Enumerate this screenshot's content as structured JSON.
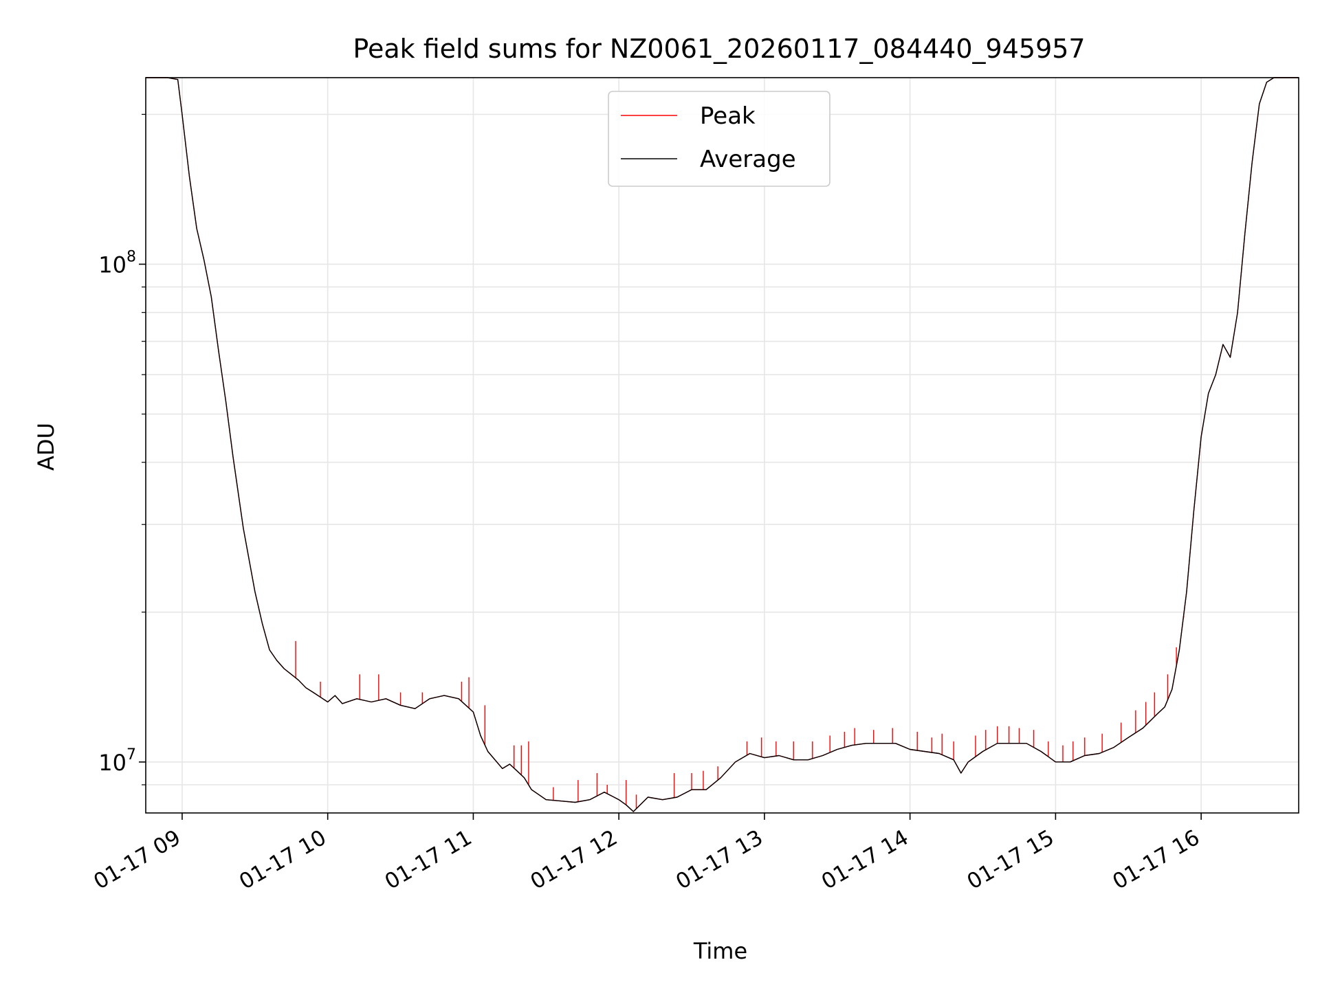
{
  "chart_data": {
    "type": "line",
    "title": "Peak field sums for NZ0061_20260117_084440_945957",
    "xlabel": "Time",
    "ylabel": "ADU",
    "yscale": "log",
    "xlim": [
      8.75,
      16.67
    ],
    "ylim": [
      7900000,
      237000000
    ],
    "grid": true,
    "legend_position": "upper center",
    "x_ticks": [
      {
        "value": 9,
        "label": "01-17 09"
      },
      {
        "value": 10,
        "label": "01-17 10"
      },
      {
        "value": 11,
        "label": "01-17 11"
      },
      {
        "value": 12,
        "label": "01-17 12"
      },
      {
        "value": 13,
        "label": "01-17 13"
      },
      {
        "value": 14,
        "label": "01-17 14"
      },
      {
        "value": 15,
        "label": "01-17 15"
      },
      {
        "value": 16,
        "label": "01-17 16"
      }
    ],
    "y_major_ticks": [
      {
        "value": 10000000,
        "base": "10",
        "exp": "7"
      },
      {
        "value": 100000000,
        "base": "10",
        "exp": "8"
      }
    ],
    "y_minor_ticks": [
      9000000,
      20000000,
      30000000,
      40000000,
      50000000,
      60000000,
      70000000,
      80000000,
      90000000,
      200000000
    ],
    "series": [
      {
        "name": "Average",
        "color": "#000000",
        "x": [
          8.75,
          8.9,
          8.97,
          9.0,
          9.05,
          9.1,
          9.15,
          9.2,
          9.25,
          9.3,
          9.35,
          9.42,
          9.5,
          9.55,
          9.6,
          9.65,
          9.7,
          9.75,
          9.8,
          9.85,
          9.9,
          10.0,
          10.05,
          10.1,
          10.2,
          10.3,
          10.4,
          10.5,
          10.6,
          10.7,
          10.8,
          10.9,
          11.0,
          11.05,
          11.1,
          11.2,
          11.25,
          11.3,
          11.35,
          11.4,
          11.5,
          11.6,
          11.7,
          11.8,
          11.9,
          12.0,
          12.05,
          12.1,
          12.2,
          12.3,
          12.4,
          12.5,
          12.6,
          12.7,
          12.8,
          12.9,
          13.0,
          13.1,
          13.2,
          13.3,
          13.4,
          13.5,
          13.6,
          13.7,
          13.8,
          13.9,
          14.0,
          14.1,
          14.2,
          14.3,
          14.35,
          14.4,
          14.5,
          14.6,
          14.7,
          14.8,
          14.9,
          15.0,
          15.1,
          15.2,
          15.3,
          15.4,
          15.5,
          15.6,
          15.7,
          15.75,
          15.8,
          15.85,
          15.9,
          15.95,
          16.0,
          16.05,
          16.1,
          16.15,
          16.2,
          16.25,
          16.3,
          16.35,
          16.4,
          16.45,
          16.5,
          16.67
        ],
        "y": [
          237000000,
          237000000,
          235000000,
          200000000,
          150000000,
          118000000,
          102000000,
          86000000,
          67000000,
          53000000,
          41000000,
          29500000,
          22000000,
          19000000,
          16800000,
          16000000,
          15400000,
          15000000,
          14600000,
          14100000,
          13800000,
          13200000,
          13600000,
          13100000,
          13400000,
          13200000,
          13400000,
          13000000,
          12800000,
          13400000,
          13600000,
          13400000,
          12600000,
          11300000,
          10500000,
          9700000,
          9900000,
          9600000,
          9300000,
          8800000,
          8400000,
          8350000,
          8300000,
          8400000,
          8700000,
          8400000,
          8200000,
          7950000,
          8500000,
          8400000,
          8500000,
          8800000,
          8800000,
          9300000,
          10000000,
          10400000,
          10200000,
          10300000,
          10100000,
          10100000,
          10300000,
          10600000,
          10800000,
          10900000,
          10900000,
          10900000,
          10600000,
          10500000,
          10400000,
          10100000,
          9500000,
          10000000,
          10500000,
          10900000,
          10900000,
          10900000,
          10500000,
          10000000,
          10000000,
          10300000,
          10400000,
          10700000,
          11200000,
          11700000,
          12500000,
          12900000,
          14000000,
          16800000,
          22000000,
          32000000,
          45000000,
          55000000,
          60000000,
          69000000,
          65000000,
          80000000,
          115000000,
          160000000,
          210000000,
          232000000,
          237000000,
          237000000
        ]
      },
      {
        "name": "Peak",
        "color": "#ff0000",
        "x": [
          8.75,
          8.9,
          8.97,
          9.0,
          9.05,
          9.1,
          9.15,
          9.2,
          9.25,
          9.3,
          9.35,
          9.42,
          9.5,
          9.55,
          9.6,
          9.65,
          9.7,
          9.75,
          9.8,
          9.85,
          9.9,
          10.0,
          10.05,
          10.1,
          10.2,
          10.3,
          10.4,
          10.5,
          10.6,
          10.7,
          10.8,
          10.9,
          11.0,
          11.05,
          11.1,
          11.2,
          11.25,
          11.3,
          11.35,
          11.4,
          11.5,
          11.6,
          11.7,
          11.8,
          11.9,
          12.0,
          12.05,
          12.1,
          12.2,
          12.3,
          12.4,
          12.5,
          12.6,
          12.7,
          12.8,
          12.9,
          13.0,
          13.1,
          13.2,
          13.3,
          13.4,
          13.5,
          13.6,
          13.7,
          13.8,
          13.9,
          14.0,
          14.1,
          14.2,
          14.3,
          14.35,
          14.4,
          14.5,
          14.6,
          14.7,
          14.8,
          14.9,
          15.0,
          15.1,
          15.2,
          15.3,
          15.4,
          15.5,
          15.6,
          15.7,
          15.75,
          15.8,
          15.85,
          15.9,
          15.95,
          16.0,
          16.05,
          16.1,
          16.15,
          16.2,
          16.25,
          16.3,
          16.35,
          16.4,
          16.45,
          16.5,
          16.67
        ],
        "y": [
          237000000,
          237000000,
          235000000,
          200000000,
          150000000,
          118000000,
          102000000,
          86000000,
          67000000,
          53000000,
          41000000,
          29500000,
          22000000,
          19000000,
          16800000,
          16000000,
          15400000,
          15000000,
          14600000,
          14100000,
          13800000,
          13200000,
          13600000,
          13100000,
          13400000,
          13200000,
          13400000,
          13000000,
          12800000,
          13400000,
          13600000,
          13400000,
          12600000,
          11300000,
          10500000,
          9700000,
          9900000,
          9600000,
          9300000,
          8800000,
          8400000,
          8350000,
          8300000,
          8400000,
          8700000,
          8400000,
          8200000,
          7950000,
          8500000,
          8400000,
          8500000,
          8800000,
          8800000,
          9300000,
          10000000,
          10400000,
          10200000,
          10300000,
          10100000,
          10100000,
          10300000,
          10600000,
          10800000,
          10900000,
          10900000,
          10900000,
          10600000,
          10500000,
          10400000,
          10100000,
          9500000,
          10000000,
          10500000,
          10900000,
          10900000,
          10900000,
          10500000,
          10000000,
          10000000,
          10300000,
          10400000,
          10700000,
          11200000,
          11700000,
          12500000,
          12900000,
          14000000,
          16800000,
          22000000,
          32000000,
          45000000,
          55000000,
          60000000,
          69000000,
          65000000,
          80000000,
          115000000,
          160000000,
          210000000,
          232000000,
          237000000,
          237000000
        ],
        "spikes": [
          [
            9.78,
            17500000
          ],
          [
            9.95,
            14500000
          ],
          [
            10.22,
            15000000
          ],
          [
            10.35,
            15000000
          ],
          [
            10.5,
            13800000
          ],
          [
            10.65,
            13800000
          ],
          [
            10.92,
            14500000
          ],
          [
            10.97,
            14800000
          ],
          [
            11.08,
            13000000
          ],
          [
            11.28,
            10800000
          ],
          [
            11.33,
            10800000
          ],
          [
            11.38,
            11000000
          ],
          [
            11.55,
            8900000
          ],
          [
            11.72,
            9200000
          ],
          [
            11.85,
            9500000
          ],
          [
            11.92,
            9000000
          ],
          [
            12.05,
            9200000
          ],
          [
            12.12,
            8600000
          ],
          [
            12.38,
            9500000
          ],
          [
            12.5,
            9500000
          ],
          [
            12.58,
            9600000
          ],
          [
            12.68,
            9800000
          ],
          [
            12.88,
            11000000
          ],
          [
            12.98,
            11200000
          ],
          [
            13.08,
            11000000
          ],
          [
            13.2,
            11000000
          ],
          [
            13.33,
            11000000
          ],
          [
            13.45,
            11300000
          ],
          [
            13.55,
            11500000
          ],
          [
            13.62,
            11700000
          ],
          [
            13.75,
            11600000
          ],
          [
            13.88,
            11700000
          ],
          [
            14.05,
            11500000
          ],
          [
            14.15,
            11200000
          ],
          [
            14.22,
            11400000
          ],
          [
            14.3,
            11000000
          ],
          [
            14.45,
            11300000
          ],
          [
            14.52,
            11600000
          ],
          [
            14.6,
            11800000
          ],
          [
            14.68,
            11800000
          ],
          [
            14.75,
            11700000
          ],
          [
            14.85,
            11600000
          ],
          [
            14.95,
            11000000
          ],
          [
            15.05,
            10800000
          ],
          [
            15.12,
            11000000
          ],
          [
            15.2,
            11200000
          ],
          [
            15.32,
            11400000
          ],
          [
            15.45,
            12000000
          ],
          [
            15.55,
            12700000
          ],
          [
            15.62,
            13200000
          ],
          [
            15.68,
            13800000
          ],
          [
            15.77,
            15000000
          ],
          [
            15.83,
            17000000
          ],
          [
            15.88,
            19500000
          ]
        ]
      }
    ]
  }
}
